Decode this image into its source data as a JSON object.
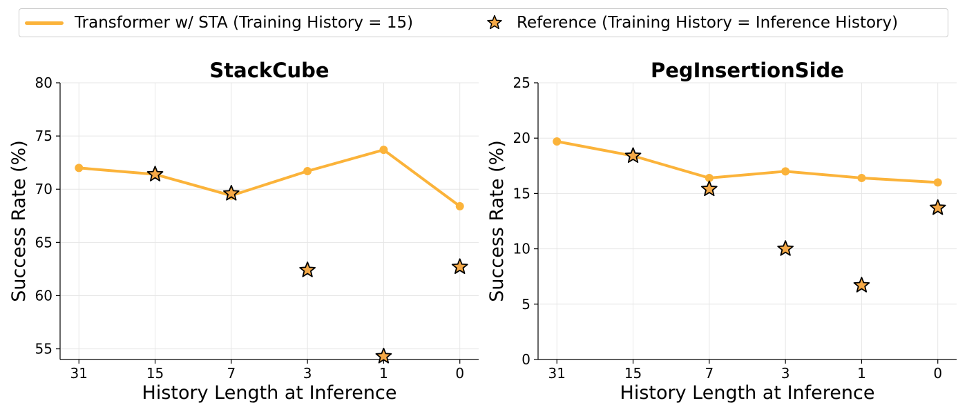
{
  "legend": {
    "line_label": "Transformer w/ STA (Training History = 15)",
    "star_label": "Reference (Training History = Inference History)"
  },
  "colors": {
    "line": "#FBB33A",
    "star_fill": "#F5A947",
    "star_edge": "#000000",
    "grid": "#e6e6e6"
  },
  "chart_data": [
    {
      "type": "line",
      "title": "StackCube",
      "xlabel": "History Length at Inference",
      "ylabel": "Success Rate (%)",
      "categories": [
        "31",
        "15",
        "7",
        "3",
        "1",
        "0"
      ],
      "ylim": [
        54,
        80
      ],
      "yticks": [
        55,
        60,
        65,
        70,
        75,
        80
      ],
      "series": [
        {
          "name": "Transformer w/ STA (Training History = 15)",
          "marker": "circle",
          "values": [
            72.0,
            71.4,
            69.4,
            71.7,
            73.7,
            68.4
          ]
        },
        {
          "name": "Reference (Training History = Inference History)",
          "marker": "star",
          "values": [
            null,
            71.4,
            69.6,
            62.4,
            54.3,
            62.7
          ]
        }
      ]
    },
    {
      "type": "line",
      "title": "PegInsertionSide",
      "xlabel": "History Length at Inference",
      "ylabel": "Success Rate (%)",
      "categories": [
        "31",
        "15",
        "7",
        "3",
        "1",
        "0"
      ],
      "ylim": [
        0,
        25
      ],
      "yticks": [
        0,
        5,
        10,
        15,
        20,
        25
      ],
      "series": [
        {
          "name": "Transformer w/ STA (Training History = 15)",
          "marker": "circle",
          "values": [
            19.7,
            18.4,
            16.4,
            17.0,
            16.4,
            16.0
          ]
        },
        {
          "name": "Reference (Training History = Inference History)",
          "marker": "star",
          "values": [
            null,
            18.4,
            15.4,
            10.0,
            6.7,
            13.7
          ]
        }
      ]
    }
  ]
}
